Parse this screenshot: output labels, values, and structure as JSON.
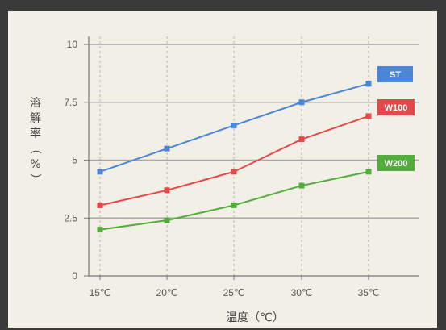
{
  "chart_data": {
    "type": "line",
    "title": "",
    "xlabel": "温度（℃）",
    "ylabel_chars": [
      "溶",
      "解",
      "率",
      "（",
      "%",
      "）"
    ],
    "categories": [
      "15℃",
      "20℃",
      "25℃",
      "30℃",
      "35℃"
    ],
    "x": [
      15,
      20,
      25,
      30,
      35
    ],
    "y_ticks": [
      "0",
      "2.5",
      "5",
      "7.5",
      "10"
    ],
    "y_tick_values": [
      0,
      2.5,
      5,
      7.5,
      10
    ],
    "ylim": [
      0,
      10
    ],
    "grid": true,
    "legend_placement": "right, at end of lines",
    "series": [
      {
        "name": "ST",
        "color": "#4a86d8",
        "values": [
          4.5,
          5.5,
          6.5,
          7.5,
          8.3
        ]
      },
      {
        "name": "W100",
        "color": "#e54848",
        "values": [
          3.05,
          3.7,
          4.5,
          5.9,
          6.9
        ]
      },
      {
        "name": "W200",
        "color": "#52ad3c",
        "values": [
          2.0,
          2.4,
          3.05,
          3.9,
          4.5
        ]
      }
    ]
  }
}
